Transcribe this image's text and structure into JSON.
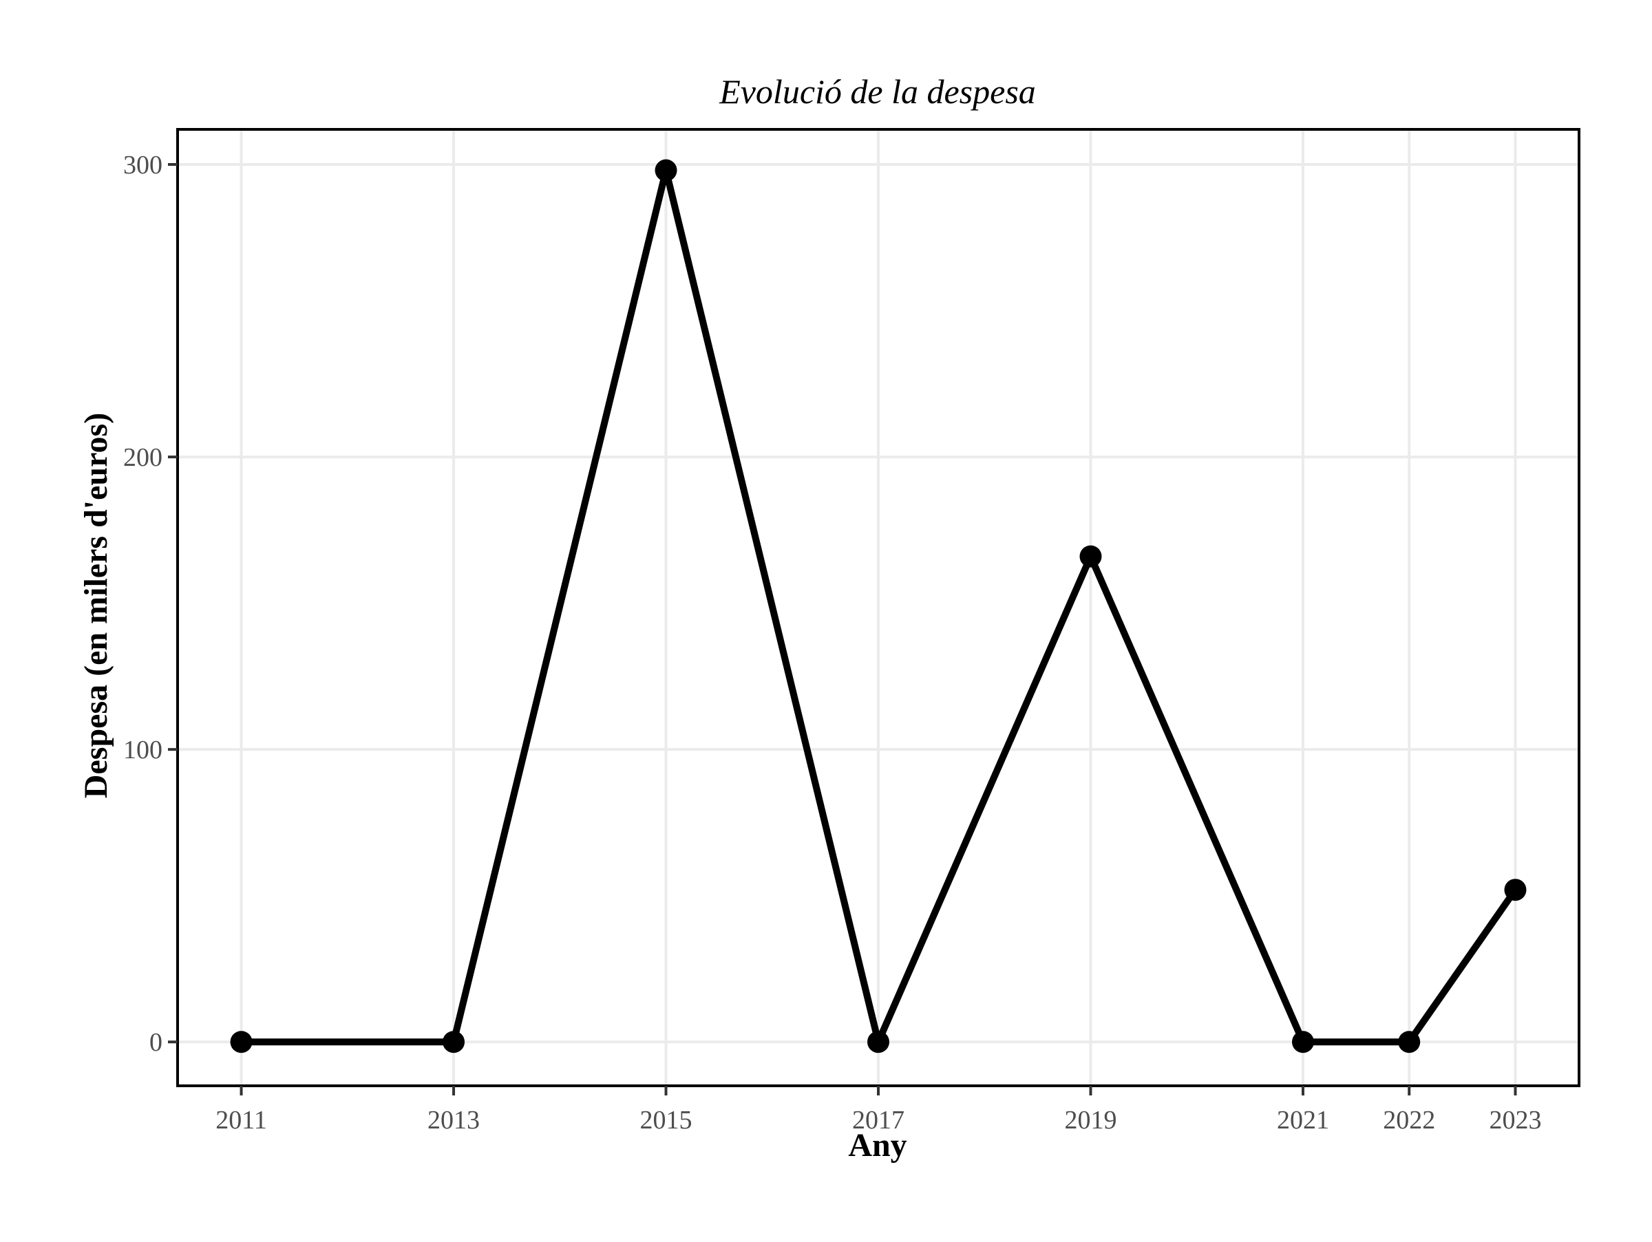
{
  "chart_data": {
    "type": "line",
    "title": "Evolució de la despesa",
    "xlabel": "Any",
    "ylabel": "Despesa (en milers d'euros)",
    "x": [
      2011,
      2013,
      2015,
      2017,
      2019,
      2021,
      2022,
      2023
    ],
    "values": [
      0,
      0,
      298,
      0,
      166,
      0,
      0,
      52
    ],
    "x_ticks": [
      2011,
      2013,
      2015,
      2017,
      2019,
      2021,
      2022,
      2023
    ],
    "y_ticks": [
      0,
      100,
      200,
      300
    ],
    "xlim": [
      2010.4,
      2023.6
    ],
    "ylim": [
      -15,
      312
    ],
    "grid": true,
    "legend": "none",
    "colors": {
      "line": "#000000",
      "grid": "#ebebeb",
      "tick_label": "#4d4d4d"
    }
  }
}
